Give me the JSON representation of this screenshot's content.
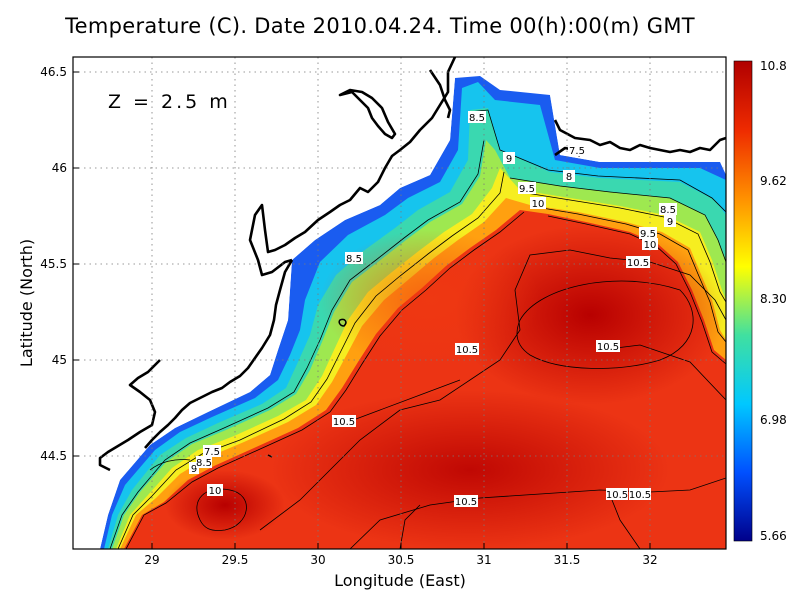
{
  "title": "Temperature (C). Date 2010.04.24. Time 00(h):00(m) GMT",
  "depth_label": "Z = 2.5 m",
  "axes": {
    "xlabel": "Longitude (East)",
    "ylabel": "Latitude (North)",
    "xticks": [
      "29",
      "29.5",
      "30",
      "30.5",
      "31",
      "31.5",
      "32"
    ],
    "yticks": [
      "46.5",
      "46",
      "45.5",
      "45",
      "44.5"
    ]
  },
  "colorbar": {
    "min": 5.66,
    "max": 10.8,
    "labels": [
      "10.8",
      "9.62",
      "8.30",
      "6.98",
      "5.66"
    ],
    "colors": [
      "#00008a",
      "#0050ff",
      "#00c8ff",
      "#40e0a0",
      "#ffff00",
      "#ff9000",
      "#ee2a00",
      "#b00000"
    ]
  },
  "contour_labels": [
    {
      "text": "8.5"
    },
    {
      "text": "7.5"
    },
    {
      "text": "9"
    },
    {
      "text": "8"
    },
    {
      "text": "9.5"
    },
    {
      "text": "10"
    },
    {
      "text": "8.5"
    },
    {
      "text": "9"
    },
    {
      "text": "9.5"
    },
    {
      "text": "10"
    },
    {
      "text": "10.5"
    },
    {
      "text": "8.5"
    },
    {
      "text": "10.5"
    },
    {
      "text": "10.5"
    },
    {
      "text": "10.5"
    },
    {
      "text": "7.5"
    },
    {
      "text": "9"
    },
    {
      "text": "8.5"
    },
    {
      "text": "10"
    },
    {
      "text": "10.5"
    },
    {
      "text": "10.5"
    },
    {
      "text": "10.5"
    }
  ]
}
